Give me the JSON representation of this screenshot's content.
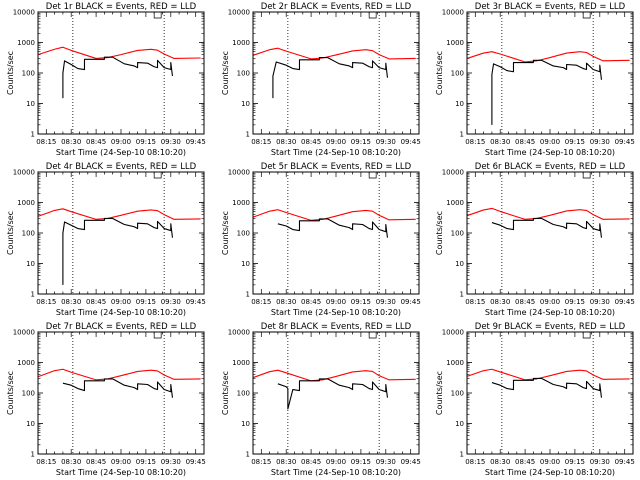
{
  "chart_data": [
    {
      "type": "line",
      "title": "Det 1r BLACK = Events, RED = LLD",
      "xlabel": "Start Time (24-Sep-10 08:10:20)",
      "ylabel": "Counts/sec",
      "yscale": "log",
      "ylim": [
        1,
        10000
      ],
      "x_tick_labels": [
        "08:15",
        "08:30",
        "08:45",
        "09:00",
        "09:15",
        "09:30",
        "09:45"
      ],
      "y_tick_labels": [
        "1",
        "10",
        "100",
        "1000",
        "10000"
      ],
      "grid": false,
      "legend": "none",
      "vlines": [
        "08:31",
        "09:26"
      ],
      "series": [
        {
          "color": "#ff0000",
          "x": [
            "08:10",
            "08:20",
            "08:25",
            "08:30",
            "08:45",
            "08:52",
            "09:00",
            "09:10",
            "09:18",
            "09:22",
            "09:26",
            "09:32",
            "09:48"
          ],
          "y": [
            400,
            600,
            700,
            550,
            300,
            320,
            400,
            550,
            600,
            560,
            420,
            300,
            310
          ]
        },
        {
          "color": "#000000",
          "x": [
            "08:25",
            "08:25",
            "08:26",
            "08:30",
            "08:34",
            "08:38",
            "08:38",
            "08:50",
            "08:50",
            "08:55",
            "09:02",
            "09:08",
            "09:10",
            "09:10",
            "09:16",
            "09:20",
            "09:22",
            "09:22",
            "09:26",
            "09:30",
            "09:30",
            "09:31"
          ],
          "y": [
            15,
            100,
            250,
            190,
            140,
            130,
            280,
            280,
            330,
            330,
            200,
            170,
            150,
            220,
            210,
            160,
            150,
            260,
            150,
            130,
            220,
            80
          ]
        }
      ]
    },
    {
      "type": "line",
      "title": "Det 2r BLACK = Events, RED = LLD",
      "xlabel": "Start Time (24-Sep-10 08:10:20)",
      "ylabel": "Counts/sec",
      "yscale": "log",
      "ylim": [
        1,
        10000
      ],
      "x_tick_labels": [
        "08:15",
        "08:30",
        "08:45",
        "09:00",
        "09:15",
        "09:30",
        "09:45"
      ],
      "y_tick_labels": [
        "1",
        "10",
        "100",
        "1000",
        "10000"
      ],
      "grid": false,
      "legend": "none",
      "vlines": [
        "08:31",
        "09:26"
      ],
      "series": [
        {
          "color": "#ff0000",
          "x": [
            "08:10",
            "08:20",
            "08:25",
            "08:30",
            "08:45",
            "08:52",
            "09:00",
            "09:10",
            "09:18",
            "09:22",
            "09:26",
            "09:32",
            "09:48"
          ],
          "y": [
            380,
            580,
            650,
            520,
            290,
            310,
            390,
            530,
            580,
            540,
            400,
            290,
            300
          ]
        },
        {
          "color": "#000000",
          "x": [
            "08:22",
            "08:22",
            "08:24",
            "08:30",
            "08:34",
            "08:38",
            "08:38",
            "08:50",
            "08:50",
            "08:55",
            "09:02",
            "09:08",
            "09:10",
            "09:10",
            "09:16",
            "09:20",
            "09:22",
            "09:22",
            "09:26",
            "09:30",
            "09:30",
            "09:31"
          ],
          "y": [
            15,
            80,
            230,
            180,
            140,
            130,
            270,
            270,
            320,
            320,
            200,
            170,
            150,
            220,
            210,
            160,
            150,
            250,
            150,
            130,
            210,
            70
          ]
        }
      ]
    },
    {
      "type": "line",
      "title": "Det 3r BLACK = Events, RED = LLD",
      "xlabel": "Start Time (24-Sep-10 08:10:20)",
      "ylabel": "Counts/sec",
      "yscale": "log",
      "ylim": [
        1,
        10000
      ],
      "x_tick_labels": [
        "08:15",
        "08:30",
        "08:45",
        "09:00",
        "09:15",
        "09:30",
        "09:45"
      ],
      "y_tick_labels": [
        "1",
        "10",
        "100",
        "1000",
        "10000"
      ],
      "grid": false,
      "legend": "none",
      "vlines": [
        "08:31",
        "09:26"
      ],
      "series": [
        {
          "color": "#ff0000",
          "x": [
            "08:10",
            "08:20",
            "08:25",
            "08:30",
            "08:45",
            "08:52",
            "09:00",
            "09:10",
            "09:18",
            "09:22",
            "09:26",
            "09:32",
            "09:48"
          ],
          "y": [
            300,
            450,
            500,
            420,
            230,
            250,
            320,
            450,
            500,
            470,
            350,
            250,
            260
          ]
        },
        {
          "color": "#000000",
          "x": [
            "08:25",
            "08:25",
            "08:26",
            "08:30",
            "08:34",
            "08:38",
            "08:38",
            "08:50",
            "08:50",
            "08:55",
            "09:02",
            "09:08",
            "09:10",
            "09:10",
            "09:16",
            "09:20",
            "09:22",
            "09:22",
            "09:26",
            "09:30",
            "09:30",
            "09:31"
          ],
          "y": [
            2,
            90,
            200,
            160,
            120,
            110,
            220,
            220,
            260,
            260,
            170,
            150,
            130,
            190,
            180,
            140,
            130,
            210,
            130,
            110,
            180,
            60
          ]
        }
      ]
    },
    {
      "type": "line",
      "title": "Det 4r BLACK = Events, RED = LLD",
      "xlabel": "Start Time (24-Sep-10 08:10:20)",
      "ylabel": "Counts/sec",
      "yscale": "log",
      "ylim": [
        1,
        10000
      ],
      "x_tick_labels": [
        "08:15",
        "08:30",
        "08:45",
        "09:00",
        "09:15",
        "09:30",
        "09:45"
      ],
      "y_tick_labels": [
        "1",
        "10",
        "100",
        "1000",
        "10000"
      ],
      "grid": false,
      "legend": "none",
      "vlines": [
        "08:31",
        "09:26"
      ],
      "series": [
        {
          "color": "#ff0000",
          "x": [
            "08:10",
            "08:20",
            "08:25",
            "08:30",
            "08:45",
            "08:52",
            "09:00",
            "09:10",
            "09:18",
            "09:22",
            "09:26",
            "09:32",
            "09:48"
          ],
          "y": [
            350,
            550,
            620,
            500,
            280,
            300,
            380,
            520,
            570,
            540,
            400,
            280,
            290
          ]
        },
        {
          "color": "#000000",
          "x": [
            "08:25",
            "08:25",
            "08:26",
            "08:30",
            "08:34",
            "08:38",
            "08:38",
            "08:50",
            "08:50",
            "08:55",
            "09:02",
            "09:08",
            "09:10",
            "09:10",
            "09:16",
            "09:20",
            "09:22",
            "09:22",
            "09:26",
            "09:30",
            "09:30",
            "09:31"
          ],
          "y": [
            2,
            100,
            230,
            180,
            140,
            130,
            260,
            260,
            300,
            300,
            190,
            160,
            140,
            210,
            200,
            150,
            140,
            240,
            140,
            120,
            200,
            70
          ]
        }
      ]
    },
    {
      "type": "line",
      "title": "Det 5r BLACK = Events, RED = LLD",
      "xlabel": "Start Time (24-Sep-10 08:10:20)",
      "ylabel": "Counts/sec",
      "yscale": "log",
      "ylim": [
        1,
        10000
      ],
      "x_tick_labels": [
        "08:15",
        "08:30",
        "08:45",
        "09:00",
        "09:15",
        "09:30",
        "09:45"
      ],
      "y_tick_labels": [
        "1",
        "10",
        "100",
        "1000",
        "10000"
      ],
      "grid": false,
      "legend": "none",
      "vlines": [
        "08:31",
        "09:26"
      ],
      "series": [
        {
          "color": "#ff0000",
          "x": [
            "08:10",
            "08:20",
            "08:25",
            "08:30",
            "08:45",
            "08:52",
            "09:00",
            "09:10",
            "09:18",
            "09:22",
            "09:26",
            "09:32",
            "09:48"
          ],
          "y": [
            330,
            520,
            580,
            470,
            260,
            280,
            360,
            500,
            550,
            520,
            380,
            270,
            280
          ]
        },
        {
          "color": "#000000",
          "x": [
            "08:25",
            "08:30",
            "08:34",
            "08:38",
            "08:38",
            "08:50",
            "08:50",
            "08:55",
            "09:02",
            "09:08",
            "09:10",
            "09:10",
            "09:16",
            "09:20",
            "09:22",
            "09:22",
            "09:26",
            "09:30",
            "09:30",
            "09:31"
          ],
          "y": [
            200,
            170,
            130,
            120,
            250,
            250,
            290,
            290,
            180,
            150,
            130,
            200,
            190,
            140,
            130,
            230,
            130,
            110,
            190,
            70
          ]
        }
      ]
    },
    {
      "type": "line",
      "title": "Det 6r BLACK = Events, RED = LLD",
      "xlabel": "Start Time (24-Sep-10 08:10:20)",
      "ylabel": "Counts/sec",
      "yscale": "log",
      "ylim": [
        1,
        10000
      ],
      "x_tick_labels": [
        "08:15",
        "08:30",
        "08:45",
        "09:00",
        "09:15",
        "09:30",
        "09:45"
      ],
      "y_tick_labels": [
        "1",
        "10",
        "100",
        "1000",
        "10000"
      ],
      "grid": false,
      "legend": "none",
      "vlines": [
        "08:31",
        "09:26"
      ],
      "series": [
        {
          "color": "#ff0000",
          "x": [
            "08:10",
            "08:20",
            "08:25",
            "08:30",
            "08:45",
            "08:52",
            "09:00",
            "09:10",
            "09:18",
            "09:22",
            "09:26",
            "09:32",
            "09:48"
          ],
          "y": [
            370,
            570,
            640,
            510,
            280,
            300,
            380,
            530,
            580,
            550,
            400,
            280,
            290
          ]
        },
        {
          "color": "#000000",
          "x": [
            "08:25",
            "08:30",
            "08:34",
            "08:38",
            "08:38",
            "08:50",
            "08:50",
            "08:55",
            "09:02",
            "09:08",
            "09:10",
            "09:10",
            "09:16",
            "09:20",
            "09:22",
            "09:22",
            "09:26",
            "09:30",
            "09:30",
            "09:31"
          ],
          "y": [
            220,
            180,
            140,
            130,
            260,
            260,
            300,
            300,
            190,
            160,
            140,
            210,
            200,
            150,
            140,
            240,
            140,
            120,
            200,
            70
          ]
        }
      ]
    },
    {
      "type": "line",
      "title": "Det 7r BLACK = Events, RED = LLD",
      "xlabel": "Start Time (24-Sep-10 08:10:20)",
      "ylabel": "Counts/sec",
      "yscale": "log",
      "ylim": [
        1,
        10000
      ],
      "x_tick_labels": [
        "08:15",
        "08:30",
        "08:45",
        "09:00",
        "09:15",
        "09:30",
        "09:45"
      ],
      "y_tick_labels": [
        "1",
        "10",
        "100",
        "1000",
        "10000"
      ],
      "grid": false,
      "legend": "none",
      "vlines": [
        "08:31",
        "09:26"
      ],
      "series": [
        {
          "color": "#ff0000",
          "x": [
            "08:10",
            "08:20",
            "08:25",
            "08:30",
            "08:45",
            "08:52",
            "09:00",
            "09:10",
            "09:18",
            "09:22",
            "09:26",
            "09:32",
            "09:48"
          ],
          "y": [
            340,
            540,
            600,
            480,
            270,
            290,
            370,
            510,
            560,
            530,
            390,
            280,
            290
          ]
        },
        {
          "color": "#000000",
          "x": [
            "08:25",
            "08:30",
            "08:34",
            "08:38",
            "08:38",
            "08:50",
            "08:50",
            "08:55",
            "09:02",
            "09:08",
            "09:10",
            "09:10",
            "09:16",
            "09:20",
            "09:22",
            "09:22",
            "09:26",
            "09:30",
            "09:30",
            "09:31"
          ],
          "y": [
            210,
            180,
            140,
            120,
            250,
            250,
            290,
            290,
            180,
            150,
            130,
            200,
            190,
            140,
            130,
            230,
            130,
            110,
            190,
            70
          ]
        }
      ]
    },
    {
      "type": "line",
      "title": "Det 8r BLACK = Events, RED = LLD",
      "xlabel": "Start Time (24-Sep-10 08:10:20)",
      "ylabel": "Counts/sec",
      "yscale": "log",
      "ylim": [
        1,
        10000
      ],
      "x_tick_labels": [
        "08:15",
        "08:30",
        "08:45",
        "09:00",
        "09:15",
        "09:30",
        "09:45"
      ],
      "y_tick_labels": [
        "1",
        "10",
        "100",
        "1000",
        "10000"
      ],
      "grid": false,
      "legend": "none",
      "vlines": [
        "08:31",
        "09:26"
      ],
      "series": [
        {
          "color": "#ff0000",
          "x": [
            "08:10",
            "08:20",
            "08:25",
            "08:30",
            "08:45",
            "08:52",
            "09:00",
            "09:10",
            "09:18",
            "09:22",
            "09:26",
            "09:32",
            "09:48"
          ],
          "y": [
            320,
            500,
            560,
            460,
            250,
            270,
            350,
            490,
            540,
            510,
            370,
            270,
            280
          ]
        },
        {
          "color": "#000000",
          "x": [
            "08:25",
            "08:30",
            "08:31",
            "08:31",
            "08:34",
            "08:38",
            "08:38",
            "08:50",
            "08:50",
            "08:55",
            "09:02",
            "09:08",
            "09:10",
            "09:10",
            "09:16",
            "09:20",
            "09:22",
            "09:22",
            "09:26",
            "09:30",
            "09:30",
            "09:31"
          ],
          "y": [
            200,
            160,
            140,
            30,
            130,
            120,
            250,
            250,
            290,
            290,
            180,
            150,
            130,
            200,
            190,
            140,
            130,
            230,
            130,
            110,
            190,
            70
          ]
        }
      ]
    },
    {
      "type": "line",
      "title": "Det 9r BLACK = Events, RED = LLD",
      "xlabel": "Start Time (24-Sep-10 08:10:20)",
      "ylabel": "Counts/sec",
      "yscale": "log",
      "ylim": [
        1,
        10000
      ],
      "x_tick_labels": [
        "08:15",
        "08:30",
        "08:45",
        "09:00",
        "09:15",
        "09:30",
        "09:45"
      ],
      "y_tick_labels": [
        "1",
        "10",
        "100",
        "1000",
        "10000"
      ],
      "grid": false,
      "legend": "none",
      "vlines": [
        "08:31",
        "09:26"
      ],
      "series": [
        {
          "color": "#ff0000",
          "x": [
            "08:10",
            "08:20",
            "08:25",
            "08:30",
            "08:45",
            "08:52",
            "09:00",
            "09:10",
            "09:18",
            "09:22",
            "09:26",
            "09:32",
            "09:48"
          ],
          "y": [
            350,
            540,
            600,
            490,
            270,
            290,
            370,
            510,
            560,
            530,
            390,
            280,
            290
          ]
        },
        {
          "color": "#000000",
          "x": [
            "08:25",
            "08:30",
            "08:34",
            "08:38",
            "08:38",
            "08:50",
            "08:50",
            "08:55",
            "09:02",
            "09:08",
            "09:10",
            "09:10",
            "09:16",
            "09:20",
            "09:22",
            "09:22",
            "09:26",
            "09:30",
            "09:30",
            "09:31"
          ],
          "y": [
            220,
            180,
            140,
            130,
            260,
            260,
            300,
            300,
            190,
            160,
            140,
            210,
            200,
            150,
            140,
            240,
            140,
            120,
            200,
            70
          ]
        }
      ]
    }
  ]
}
